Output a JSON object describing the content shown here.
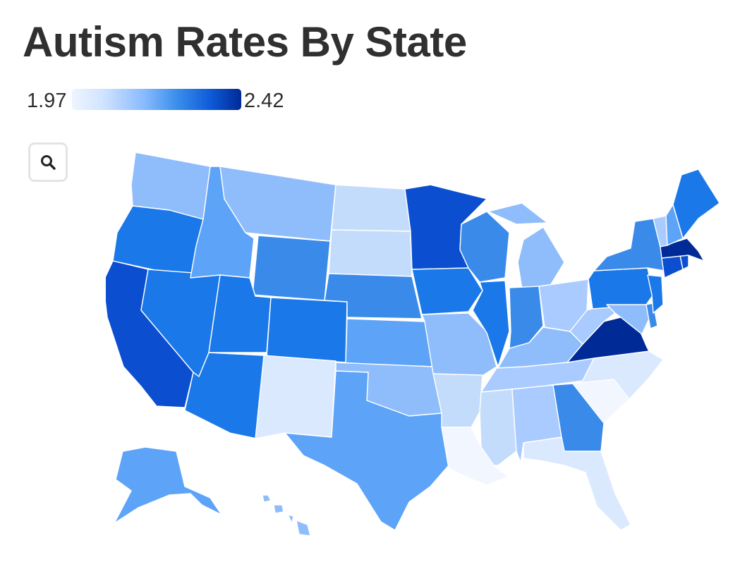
{
  "title": "Autism Rates By State",
  "legend": {
    "min": "1.97",
    "max": "2.42"
  },
  "controls": {
    "zoom_icon": "search-icon"
  },
  "colors": {
    "level_0": "#f1f6ff",
    "level_1": "#dbe9ff",
    "level_2": "#c4dcfb",
    "level_3": "#a9cbff",
    "level_4": "#8fbdfb",
    "level_5": "#5da3f7",
    "level_6": "#3a8aea",
    "level_7": "#1b78e8",
    "level_8": "#0b4fd0",
    "level_9": "#002a96"
  },
  "map_data": {
    "scale": {
      "min": 1.97,
      "max": 2.42
    },
    "states": {
      "WA": 4,
      "OR": 7,
      "CA": 8,
      "NV": 7,
      "ID": 5,
      "MT": 4,
      "WY": 6,
      "UT": 7,
      "AZ": 7,
      "CO": 7,
      "NM": 1,
      "ND": 2,
      "SD": 2,
      "NE": 6,
      "KS": 5,
      "OK": 4,
      "TX": 5,
      "MN": 8,
      "IA": 7,
      "MO": 4,
      "AR": 2,
      "LA": 0,
      "WI": 6,
      "IL": 7,
      "MI": 4,
      "IN": 6,
      "OH": 3,
      "KY": 4,
      "TN": 3,
      "MS": 2,
      "AL": 3,
      "GA": 6,
      "FL": 1,
      "SC": 0,
      "NC": 1,
      "VA": 9,
      "WV": 3,
      "MD": 4,
      "DE": 6,
      "PA": 7,
      "NJ": 7,
      "NY": 6,
      "CT": 8,
      "RI": 8,
      "MA": 9,
      "VT": 3,
      "NH": 5,
      "ME": 7,
      "AK": 5,
      "HI": 4
    }
  }
}
